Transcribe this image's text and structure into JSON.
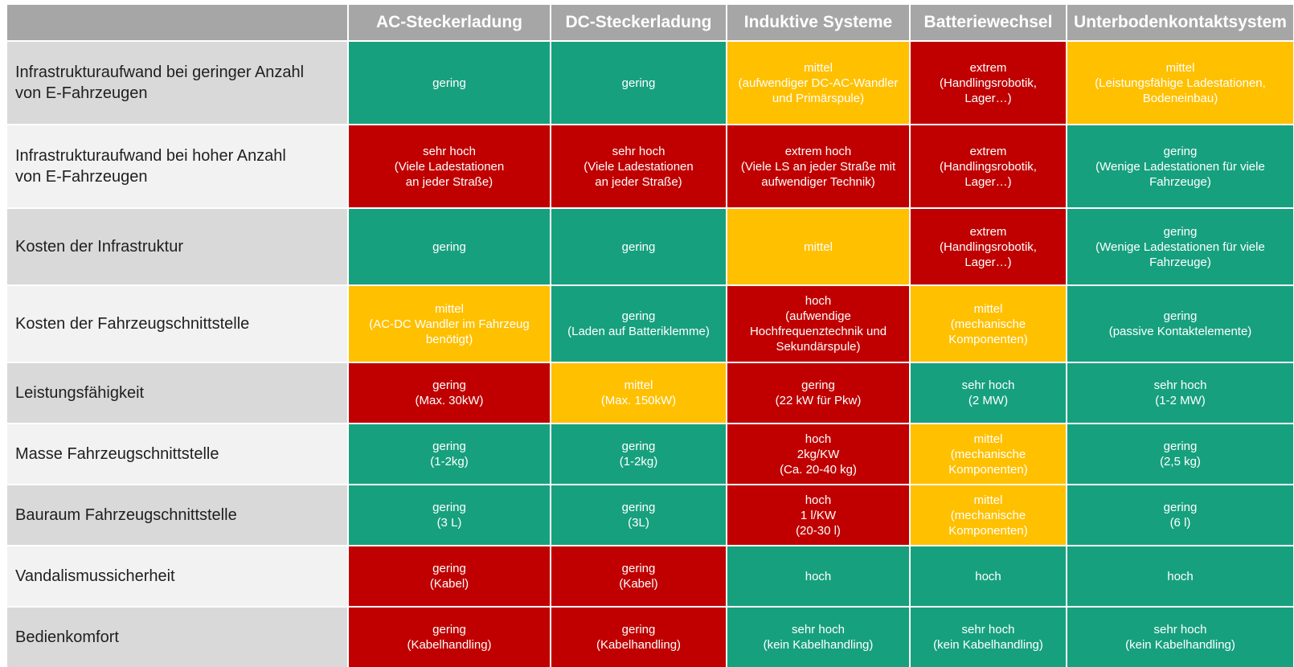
{
  "colors": {
    "green": "#17a07e",
    "red": "#c00000",
    "yellow": "#ffc000",
    "header": "#a6a6a6"
  },
  "columns": [
    "AC-Steckerladung",
    "DC-Steckerladung",
    "Induktive Systeme",
    "Batteriewechsel",
    "Unterbodenkontaktsystem"
  ],
  "rows": [
    {
      "label": "Infrastrukturaufwand bei geringer Anzahl\nvon E-Fahrzeugen",
      "cells": [
        {
          "text": "gering",
          "rating": "green"
        },
        {
          "text": "gering",
          "rating": "green"
        },
        {
          "text": "mittel\n(aufwendiger DC-AC-Wandler\nund Primärspule)",
          "rating": "yellow"
        },
        {
          "text": "extrem\n(Handlingsrobotik,\nLager…)",
          "rating": "red"
        },
        {
          "text": "mittel\n(Leistungsfähige Ladestationen,\nBodeneinbau)",
          "rating": "yellow"
        }
      ]
    },
    {
      "label": "Infrastrukturaufwand bei hoher Anzahl\nvon E-Fahrzeugen",
      "cells": [
        {
          "text": "sehr hoch\n(Viele Ladestationen\nan jeder Straße)",
          "rating": "red"
        },
        {
          "text": "sehr hoch\n(Viele Ladestationen\nan jeder Straße)",
          "rating": "red"
        },
        {
          "text": "extrem hoch\n(Viele LS an jeder Straße mit\naufwendiger Technik)",
          "rating": "red"
        },
        {
          "text": "extrem\n(Handlingsrobotik,\nLager…)",
          "rating": "red"
        },
        {
          "text": "gering\n(Wenige Ladestationen für viele\nFahrzeuge)",
          "rating": "green"
        }
      ]
    },
    {
      "label": "Kosten der Infrastruktur",
      "cells": [
        {
          "text": "gering",
          "rating": "green"
        },
        {
          "text": "gering",
          "rating": "green"
        },
        {
          "text": "mittel",
          "rating": "yellow"
        },
        {
          "text": "extrem\n(Handlingsrobotik,\nLager…)",
          "rating": "red"
        },
        {
          "text": "gering\n(Wenige Ladestationen für viele\nFahrzeuge)",
          "rating": "green"
        }
      ]
    },
    {
      "label": "Kosten der Fahrzeugschnittstelle",
      "cells": [
        {
          "text": "mittel\n(AC-DC Wandler im Fahrzeug\nbenötigt)",
          "rating": "yellow"
        },
        {
          "text": "gering\n(Laden auf Batteriklemme)",
          "rating": "green"
        },
        {
          "text": "hoch\n(aufwendige\nHochfrequenztechnik und\nSekundärspule)",
          "rating": "red"
        },
        {
          "text": "mittel\n(mechanische\nKomponenten)",
          "rating": "yellow"
        },
        {
          "text": "gering\n(passive Kontaktelemente)",
          "rating": "green"
        }
      ]
    },
    {
      "label": "Leistungsfähigkeit",
      "cells": [
        {
          "text": "gering\n(Max. 30kW)",
          "rating": "red"
        },
        {
          "text": "mittel\n(Max. 150kW)",
          "rating": "yellow"
        },
        {
          "text": "gering\n(22 kW für Pkw)",
          "rating": "red"
        },
        {
          "text": "sehr hoch\n(2 MW)",
          "rating": "green"
        },
        {
          "text": "sehr hoch\n(1-2 MW)",
          "rating": "green"
        }
      ]
    },
    {
      "label": "Masse Fahrzeugschnittstelle",
      "cells": [
        {
          "text": "gering\n(1-2kg)",
          "rating": "green"
        },
        {
          "text": "gering\n(1-2kg)",
          "rating": "green"
        },
        {
          "text": "hoch\n2kg/KW\n(Ca. 20-40 kg)",
          "rating": "red"
        },
        {
          "text": "mittel\n(mechanische\nKomponenten)",
          "rating": "yellow"
        },
        {
          "text": "gering\n(2,5 kg)",
          "rating": "green"
        }
      ]
    },
    {
      "label": "Bauraum Fahrzeugschnittstelle",
      "cells": [
        {
          "text": "gering\n(3 L)",
          "rating": "green"
        },
        {
          "text": "gering\n(3L)",
          "rating": "green"
        },
        {
          "text": "hoch\n1 l/KW\n(20-30 l)",
          "rating": "red"
        },
        {
          "text": "mittel\n(mechanische\nKomponenten)",
          "rating": "yellow"
        },
        {
          "text": "gering\n(6 l)",
          "rating": "green"
        }
      ]
    },
    {
      "label": "Vandalismussicherheit",
      "cells": [
        {
          "text": "gering\n(Kabel)",
          "rating": "red"
        },
        {
          "text": "gering\n(Kabel)",
          "rating": "red"
        },
        {
          "text": "hoch",
          "rating": "green"
        },
        {
          "text": "hoch",
          "rating": "green"
        },
        {
          "text": "hoch",
          "rating": "green"
        }
      ]
    },
    {
      "label": "Bedienkomfort",
      "cells": [
        {
          "text": "gering\n(Kabelhandling)",
          "rating": "red"
        },
        {
          "text": "gering\n(Kabelhandling)",
          "rating": "red"
        },
        {
          "text": "sehr hoch\n(kein Kabelhandling)",
          "rating": "green"
        },
        {
          "text": "sehr hoch\n(kein Kabelhandling)",
          "rating": "green"
        },
        {
          "text": "sehr hoch\n(kein Kabelhandling)",
          "rating": "green"
        }
      ]
    }
  ]
}
